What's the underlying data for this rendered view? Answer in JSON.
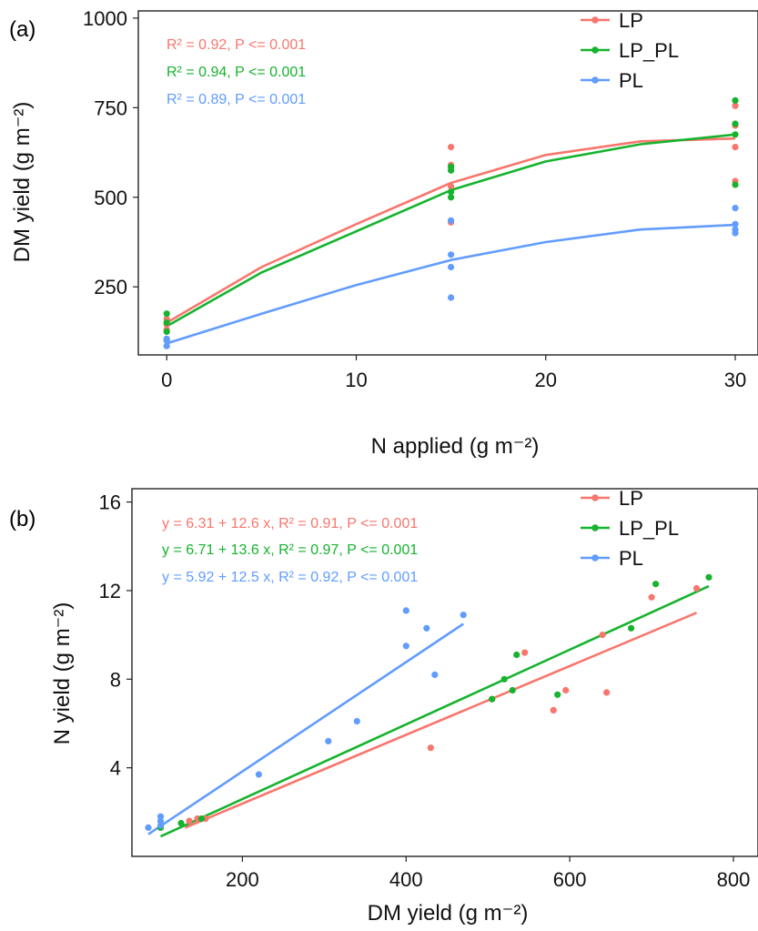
{
  "colors": {
    "LP": "#F8766D",
    "LP_PL": "#16B32E",
    "PL": "#619CFF"
  },
  "chart_data": [
    {
      "panel_label": "(a)",
      "type": "scatter",
      "xlabel": "N applied (g m⁻²)",
      "ylabel": "DM yield (g m⁻²)",
      "xlim": [
        -1.5,
        31.2
      ],
      "ylim": [
        60,
        1020
      ],
      "xticks": [
        "0",
        "10",
        "20",
        "30"
      ],
      "yticks": [
        "250",
        "500",
        "750",
        "1000"
      ],
      "legend_position": "top-right",
      "legend": [
        "LP",
        "LP_PL",
        "PL"
      ],
      "annotations": [
        {
          "series": "LP",
          "text": "R² = 0.92, P <= 0.001"
        },
        {
          "series": "LP_PL",
          "text": "R² = 0.94, P <= 0.001"
        },
        {
          "series": "PL",
          "text": "R² = 0.89, P <= 0.001"
        }
      ],
      "series": [
        {
          "name": "LP",
          "points": [
            [
              0,
              130
            ],
            [
              0,
              145
            ],
            [
              0,
              160
            ],
            [
              15,
              430
            ],
            [
              15,
              530
            ],
            [
              15,
              590
            ],
            [
              15,
              640
            ],
            [
              30,
              545
            ],
            [
              30,
              640
            ],
            [
              30,
              700
            ],
            [
              30,
              755
            ]
          ],
          "fit": [
            [
              0,
              150
            ],
            [
              5,
              305
            ],
            [
              10,
              425
            ],
            [
              15,
              540
            ],
            [
              20,
              618
            ],
            [
              25,
              656
            ],
            [
              30,
              664
            ]
          ]
        },
        {
          "name": "LP_PL",
          "points": [
            [
              0,
              125
            ],
            [
              0,
              150
            ],
            [
              0,
              175
            ],
            [
              15,
              500
            ],
            [
              15,
              515
            ],
            [
              15,
              575
            ],
            [
              15,
              585
            ],
            [
              30,
              535
            ],
            [
              30,
              675
            ],
            [
              30,
              705
            ],
            [
              30,
              770
            ]
          ],
          "fit": [
            [
              0,
              140
            ],
            [
              5,
              290
            ],
            [
              10,
              405
            ],
            [
              15,
              520
            ],
            [
              20,
              600
            ],
            [
              25,
              648
            ],
            [
              30,
              675
            ]
          ]
        },
        {
          "name": "PL",
          "points": [
            [
              0,
              85
            ],
            [
              0,
              100
            ],
            [
              0,
              105
            ],
            [
              15,
              220
            ],
            [
              15,
              305
            ],
            [
              15,
              340
            ],
            [
              15,
              435
            ],
            [
              30,
              400
            ],
            [
              30,
              410
            ],
            [
              30,
              425
            ],
            [
              30,
              470
            ]
          ],
          "fit": [
            [
              0,
              92
            ],
            [
              5,
              175
            ],
            [
              10,
              255
            ],
            [
              15,
              325
            ],
            [
              20,
              375
            ],
            [
              25,
              410
            ],
            [
              30,
              423
            ]
          ]
        }
      ]
    },
    {
      "panel_label": "(b)",
      "type": "scatter",
      "xlabel": "DM yield (g m⁻²)",
      "ylabel": "N yield (g m⁻²)",
      "xlim": [
        65,
        830
      ],
      "ylim": [
        0,
        16.6
      ],
      "xticks": [
        "200",
        "400",
        "600",
        "800"
      ],
      "yticks": [
        "4",
        "8",
        "12",
        "16"
      ],
      "legend_position": "top-right",
      "legend": [
        "LP",
        "LP_PL",
        "PL"
      ],
      "annotations": [
        {
          "series": "LP",
          "text": "y = 6.31 + 12.6 x, R² = 0.91, P <= 0.001"
        },
        {
          "series": "LP_PL",
          "text": "y = 6.71 + 13.6 x, R² = 0.97, P <= 0.001"
        },
        {
          "series": "PL",
          "text": "y = 5.92 + 12.5 x, R² = 0.92, P <= 0.001"
        }
      ],
      "series": [
        {
          "name": "LP",
          "points": [
            [
              135,
              1.6
            ],
            [
              145,
              1.7
            ],
            [
              155,
              1.7
            ],
            [
              430,
              4.9
            ],
            [
              505,
              7.1
            ],
            [
              545,
              9.2
            ],
            [
              580,
              6.6
            ],
            [
              595,
              7.5
            ],
            [
              640,
              10.0
            ],
            [
              645,
              7.4
            ],
            [
              700,
              11.7
            ],
            [
              755,
              12.1
            ]
          ],
          "fit": [
            [
              130,
              1.3
            ],
            [
              755,
              11.0
            ]
          ]
        },
        {
          "name": "LP_PL",
          "points": [
            [
              100,
              1.3
            ],
            [
              125,
              1.5
            ],
            [
              150,
              1.7
            ],
            [
              505,
              7.1
            ],
            [
              520,
              8.0
            ],
            [
              530,
              7.5
            ],
            [
              535,
              9.1
            ],
            [
              585,
              7.3
            ],
            [
              675,
              10.3
            ],
            [
              705,
              12.3
            ],
            [
              770,
              12.6
            ]
          ],
          "fit": [
            [
              100,
              0.9
            ],
            [
              770,
              12.2
            ]
          ]
        },
        {
          "name": "PL",
          "points": [
            [
              85,
              1.3
            ],
            [
              100,
              1.4
            ],
            [
              100,
              1.6
            ],
            [
              100,
              1.8
            ],
            [
              220,
              3.7
            ],
            [
              305,
              5.2
            ],
            [
              340,
              6.1
            ],
            [
              400,
              9.5
            ],
            [
              400,
              11.1
            ],
            [
              425,
              10.3
            ],
            [
              435,
              8.2
            ],
            [
              470,
              10.9
            ]
          ],
          "fit": [
            [
              85,
              1.0
            ],
            [
              470,
              10.5
            ]
          ]
        }
      ]
    }
  ]
}
